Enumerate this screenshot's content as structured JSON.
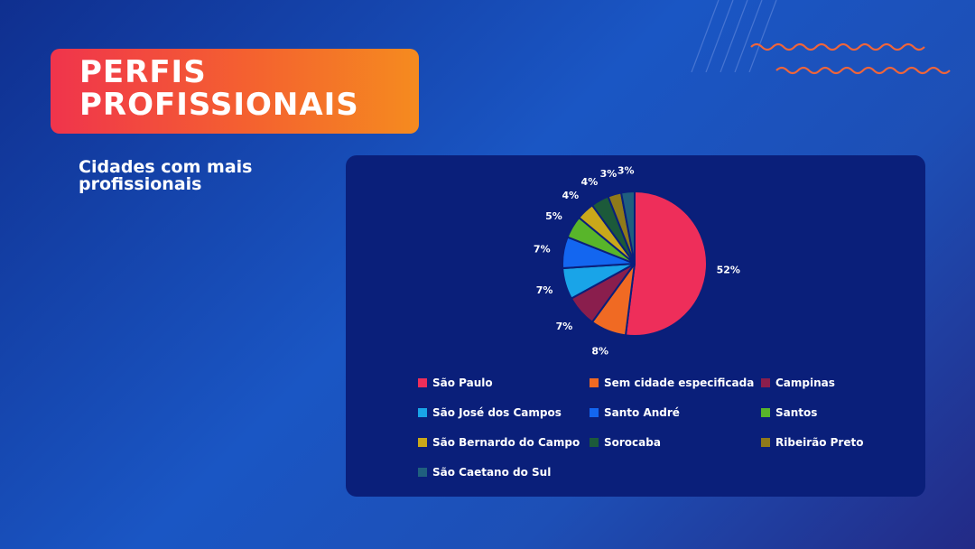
{
  "header": {
    "title_lines": [
      "PERFIS",
      "PROFISSIONAIS"
    ],
    "subtitle_lines": [
      "Cidades com mais",
      "profissionais"
    ]
  },
  "colors": {
    "accent_orange": "#f4622f",
    "panel": "#0a1f7a"
  },
  "chart_data": {
    "type": "pie",
    "title": "",
    "legend_position": "bottom",
    "categories": [
      "São Paulo",
      "Sem cidade especificada",
      "Campinas",
      "São José dos Campos",
      "Santo André",
      "Santos",
      "São Bernardo do Campo",
      "Sorocaba",
      "Ribeirão Preto",
      "São Caetano do Sul"
    ],
    "values": [
      52,
      8,
      7,
      7,
      7,
      5,
      4,
      4,
      3,
      3
    ],
    "labels": [
      "52%",
      "8%",
      "7%",
      "7%",
      "7%",
      "5%",
      "4%",
      "4%",
      "3%",
      "3%"
    ],
    "colors": [
      "#ee2e5a",
      "#f06a23",
      "#8a1e4d",
      "#19a4e8",
      "#1366f0",
      "#58b52a",
      "#c9a81a",
      "#1c5a3a",
      "#8f7a1a",
      "#1f5f7e"
    ]
  }
}
